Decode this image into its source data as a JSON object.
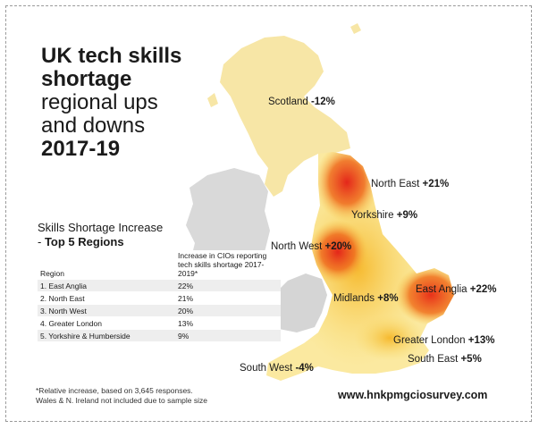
{
  "title": {
    "line1": "UK tech skills",
    "line2": "shortage",
    "line3": "regional ups",
    "line4": "and downs",
    "line5": "2017-19"
  },
  "regions": [
    {
      "name": "Scotland",
      "value": "-12%"
    },
    {
      "name": "North East",
      "value": "+21%"
    },
    {
      "name": "Yorkshire",
      "value": "+9%"
    },
    {
      "name": "North West",
      "value": "+20%"
    },
    {
      "name": "Midlands",
      "value": "+8%"
    },
    {
      "name": "East Anglia",
      "value": "+22%"
    },
    {
      "name": "Greater London",
      "value": "+13%"
    },
    {
      "name": "South East",
      "value": "+5%"
    },
    {
      "name": "South West",
      "value": "-4%"
    }
  ],
  "legend": {
    "heading": "Skills Shortage Increase",
    "subheading_prefix": "- ",
    "subheading": "Top 5 Regions"
  },
  "table": {
    "col_region": "Region",
    "col_value": "Increase in CIOs reporting tech skills shortage 2017-2019*",
    "rows": [
      {
        "region": "1. East Anglia",
        "value": "22%"
      },
      {
        "region": "2. North East",
        "value": "21%"
      },
      {
        "region": "3. North West",
        "value": "20%"
      },
      {
        "region": "4. Greater London",
        "value": "13%"
      },
      {
        "region": "5. Yorkshire & Humberside",
        "value": "9%"
      }
    ]
  },
  "footnote": {
    "line1": "*Relative increase, based on 3,645 responses.",
    "line2": "Wales & N. Ireland not included due to sample size"
  },
  "url": "www.hnkpmgciosurvey.com",
  "colors": {
    "scotland": "#f7e6a6",
    "northern_ireland": "#d9d9d9",
    "wales": "#d9d9d9",
    "hot_red": "#e8311a",
    "orange": "#f28a1c",
    "yellow": "#f7c948",
    "pale": "#fbe9a0"
  }
}
